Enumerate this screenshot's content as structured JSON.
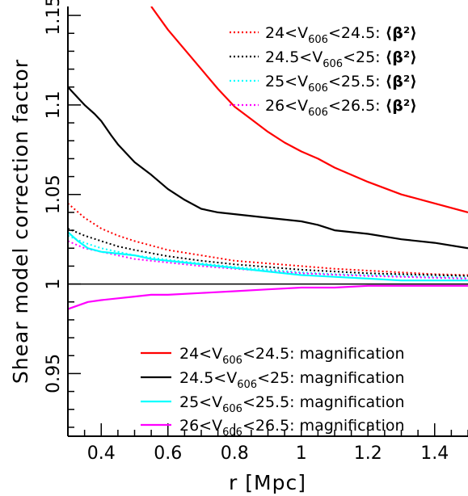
{
  "chart_data": {
    "type": "line",
    "title": "",
    "xlabel": "r [Mpc]",
    "ylabel": "Shear model correction factor",
    "xlim": [
      0.3,
      1.5
    ],
    "ylim": [
      0.915,
      1.155
    ],
    "xticks": [
      0.4,
      0.6,
      0.8,
      1,
      1.2,
      1.4
    ],
    "xtick_labels": [
      "0.4",
      "0.6",
      "0.8",
      "1",
      "1.2",
      "1.4"
    ],
    "yticks": [
      0.95,
      1,
      1.05,
      1.1,
      1.15
    ],
    "ytick_labels": [
      "0.95",
      "1",
      "1.05",
      "1.1",
      "1.15"
    ],
    "reference_line": 1,
    "grid": false,
    "legends": [
      {
        "placement": "top-right",
        "style": "dotted",
        "entries": [
          "beta_red",
          "beta_black",
          "beta_cyan",
          "beta_magenta"
        ]
      },
      {
        "placement": "bottom-right",
        "style": "solid",
        "entries": [
          "mag_red",
          "mag_black",
          "mag_cyan",
          "mag_magenta"
        ]
      }
    ],
    "series": [
      {
        "id": "beta_red",
        "range": "24<V606<24.5",
        "suffix": "⟨β²⟩",
        "name": "24<V606<24.5: ⟨β²⟩",
        "range_parts": [
          "24<V",
          "606",
          "<24.5"
        ],
        "color": "#ff0000",
        "dash": "dotted",
        "x": [
          0.3,
          0.35,
          0.4,
          0.45,
          0.5,
          0.6,
          0.7,
          0.8,
          0.9,
          1.0,
          1.1,
          1.2,
          1.3,
          1.4,
          1.5
        ],
        "y": [
          1.045,
          1.037,
          1.031,
          1.027,
          1.024,
          1.019,
          1.016,
          1.013,
          1.0115,
          1.01,
          1.0085,
          1.0075,
          1.0065,
          1.0055,
          1.005
        ]
      },
      {
        "id": "beta_black",
        "range": "24.5<V606<25",
        "suffix": "⟨β²⟩",
        "name": "24.5<V606<25: ⟨β²⟩",
        "range_parts": [
          "24.5<V",
          "606",
          "<25"
        ],
        "color": "#000000",
        "dash": "dotted",
        "x": [
          0.3,
          0.35,
          0.4,
          0.45,
          0.5,
          0.6,
          0.7,
          0.8,
          0.9,
          1.0,
          1.1,
          1.2,
          1.3,
          1.4,
          1.5
        ],
        "y": [
          1.031,
          1.027,
          1.024,
          1.021,
          1.019,
          1.0155,
          1.013,
          1.011,
          1.0095,
          1.008,
          1.007,
          1.006,
          1.0055,
          1.005,
          1.0045
        ]
      },
      {
        "id": "beta_cyan",
        "range": "25<V606<25.5",
        "suffix": "⟨β²⟩",
        "name": "25<V606<25.5: ⟨β²⟩",
        "range_parts": [
          "25<V",
          "606",
          "<25.5"
        ],
        "color": "#00ffff",
        "dash": "dotted",
        "x": [
          0.3,
          0.35,
          0.4,
          0.45,
          0.5,
          0.6,
          0.7,
          0.8,
          0.9,
          1.0,
          1.1,
          1.2,
          1.3,
          1.4,
          1.5
        ],
        "y": [
          1.027,
          1.023,
          1.02,
          1.018,
          1.016,
          1.0135,
          1.0115,
          1.0095,
          1.008,
          1.0065,
          1.0055,
          1.005,
          1.0045,
          1.004,
          1.0035
        ]
      },
      {
        "id": "beta_magenta",
        "range": "26<V606<26.5",
        "suffix": "⟨β²⟩",
        "name": "26<V606<26.5: ⟨β²⟩",
        "range_parts": [
          "26<V",
          "606",
          "<26.5"
        ],
        "color": "#ff00ff",
        "dash": "dotted",
        "x": [
          0.3,
          0.35,
          0.4,
          0.45,
          0.5,
          0.6,
          0.7,
          0.8,
          0.9,
          1.0,
          1.1,
          1.2,
          1.3,
          1.4,
          1.5
        ],
        "y": [
          1.024,
          1.02,
          1.018,
          1.016,
          1.014,
          1.012,
          1.01,
          1.0085,
          1.0072,
          1.006,
          1.0052,
          1.0045,
          1.004,
          1.0035,
          1.003
        ]
      },
      {
        "id": "mag_red",
        "range": "24<V606<24.5",
        "suffix": "magnification",
        "name": "24<V606<24.5: magnification",
        "range_parts": [
          "24<V",
          "606",
          "<24.5"
        ],
        "color": "#ff0000",
        "dash": "solid",
        "x": [
          0.55,
          0.6,
          0.65,
          0.7,
          0.75,
          0.8,
          0.85,
          0.9,
          0.95,
          1.0,
          1.05,
          1.1,
          1.2,
          1.3,
          1.4,
          1.5
        ],
        "y": [
          1.155,
          1.142,
          1.131,
          1.12,
          1.109,
          1.099,
          1.092,
          1.085,
          1.079,
          1.074,
          1.07,
          1.065,
          1.057,
          1.05,
          1.045,
          1.04
        ]
      },
      {
        "id": "mag_black",
        "range": "24.5<V606<25",
        "suffix": "magnification",
        "name": "24.5<V606<25: magnification",
        "range_parts": [
          "24.5<V",
          "606",
          "<25"
        ],
        "color": "#000000",
        "dash": "solid",
        "x": [
          0.3,
          0.35,
          0.38,
          0.4,
          0.43,
          0.45,
          0.48,
          0.5,
          0.55,
          0.6,
          0.65,
          0.7,
          0.75,
          0.8,
          0.9,
          1.0,
          1.05,
          1.1,
          1.2,
          1.3,
          1.4,
          1.5
        ],
        "y": [
          1.11,
          1.1,
          1.095,
          1.091,
          1.083,
          1.078,
          1.072,
          1.068,
          1.061,
          1.053,
          1.047,
          1.042,
          1.04,
          1.039,
          1.037,
          1.035,
          1.033,
          1.03,
          1.028,
          1.025,
          1.023,
          1.02
        ]
      },
      {
        "id": "mag_cyan",
        "range": "25<V606<25.5",
        "suffix": "magnification",
        "name": "25<V606<25.5: magnification",
        "range_parts": [
          "25<V",
          "606",
          "<25.5"
        ],
        "color": "#00ffff",
        "dash": "solid",
        "x": [
          0.3,
          0.33,
          0.36,
          0.4,
          0.45,
          0.5,
          0.55,
          0.6,
          0.65,
          0.7,
          0.8,
          0.9,
          1.0,
          1.1,
          1.2,
          1.3,
          1.4,
          1.5
        ],
        "y": [
          1.029,
          1.024,
          1.02,
          1.018,
          1.017,
          1.016,
          1.014,
          1.013,
          1.012,
          1.011,
          1.009,
          1.007,
          1.005,
          1.004,
          1.003,
          1.002,
          1.002,
          1.002
        ]
      },
      {
        "id": "mag_magenta",
        "range": "26<V606<26.5",
        "suffix": "magnification",
        "name": "26<V606<26.5: magnification",
        "range_parts": [
          "26<V",
          "606",
          "<26.5"
        ],
        "color": "#ff00ff",
        "dash": "solid",
        "x": [
          0.3,
          0.33,
          0.36,
          0.4,
          0.45,
          0.5,
          0.55,
          0.6,
          0.7,
          0.8,
          0.9,
          1.0,
          1.1,
          1.2,
          1.3,
          1.4,
          1.5
        ],
        "y": [
          0.986,
          0.988,
          0.99,
          0.991,
          0.992,
          0.993,
          0.994,
          0.994,
          0.995,
          0.996,
          0.997,
          0.998,
          0.998,
          0.999,
          0.999,
          0.999,
          0.999
        ]
      }
    ]
  }
}
